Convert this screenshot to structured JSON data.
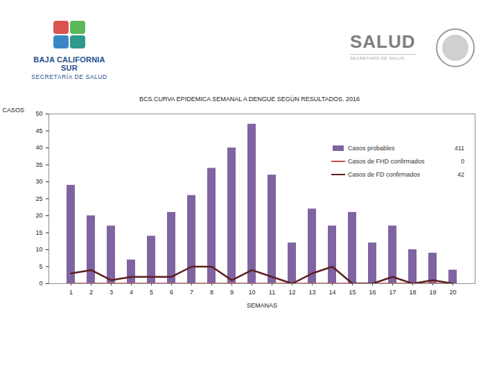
{
  "header": {
    "left": [
      "BAJA CALIFORNIA SUR",
      "SECRETARÍA DE SALUD"
    ],
    "right": [
      "SALUD",
      "SECRETARÍA DE SALUD"
    ]
  },
  "chart_data": {
    "type": "bar",
    "title": "BCS.CURVA EPIDEMICA SEMANAL A DENGUE SEGÚN RESULTADOS. 2016",
    "x_label": "SEMANAS",
    "y_label": "CASOS",
    "categories": [
      1,
      2,
      3,
      4,
      5,
      6,
      7,
      8,
      9,
      10,
      11,
      12,
      13,
      14,
      15,
      16,
      17,
      18,
      19,
      20
    ],
    "series": [
      {
        "name": "Casos probables",
        "type": "bar",
        "color": "#8064a2",
        "total": 411,
        "values": [
          29,
          20,
          17,
          7,
          14,
          21,
          26,
          34,
          40,
          47,
          32,
          12,
          22,
          17,
          21,
          12,
          17,
          10,
          9,
          4
        ]
      },
      {
        "name": "Casos de FHD confirmados",
        "type": "line",
        "color": "#c0504d",
        "total": 0,
        "values": [
          0,
          0,
          0,
          0,
          0,
          0,
          0,
          0,
          0,
          0,
          0,
          0,
          0,
          0,
          0,
          0,
          0,
          0,
          0,
          0
        ]
      },
      {
        "name": "Casos de FD confirmados",
        "type": "line",
        "color": "#5b1f1f",
        "total": 42,
        "values": [
          3,
          4,
          1,
          2,
          2,
          2,
          5,
          5,
          1,
          4,
          2,
          0,
          3,
          5,
          0,
          0,
          2,
          0,
          1,
          0
        ]
      }
    ],
    "ylim": [
      0,
      50
    ],
    "yticks": [
      0,
      5,
      10,
      15,
      20,
      25,
      30,
      35,
      40,
      45,
      50
    ],
    "grid": false,
    "legend": "upper right"
  }
}
